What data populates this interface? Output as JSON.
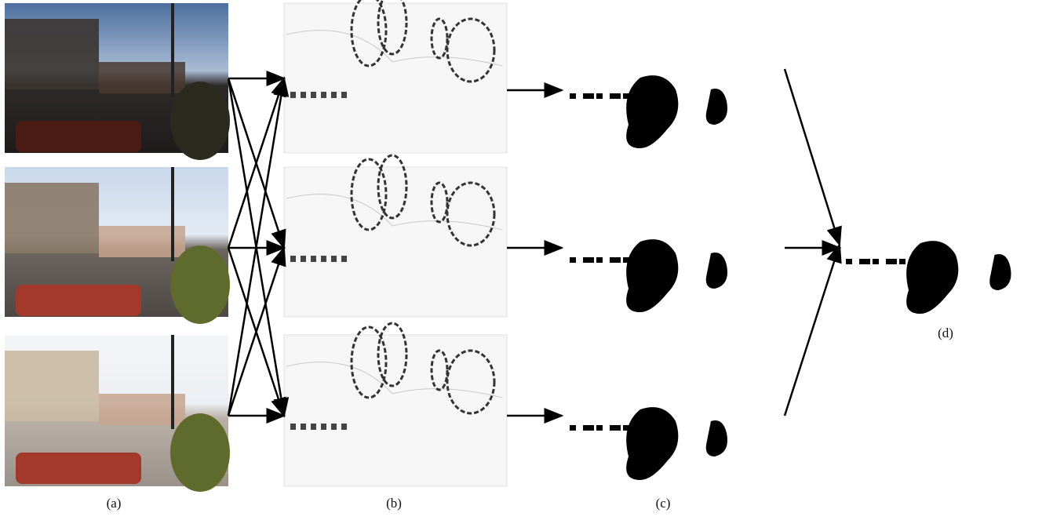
{
  "figure": {
    "labels": {
      "a": "(a)",
      "b": "(b)",
      "c": "(c)",
      "d": "(d)"
    }
  }
}
